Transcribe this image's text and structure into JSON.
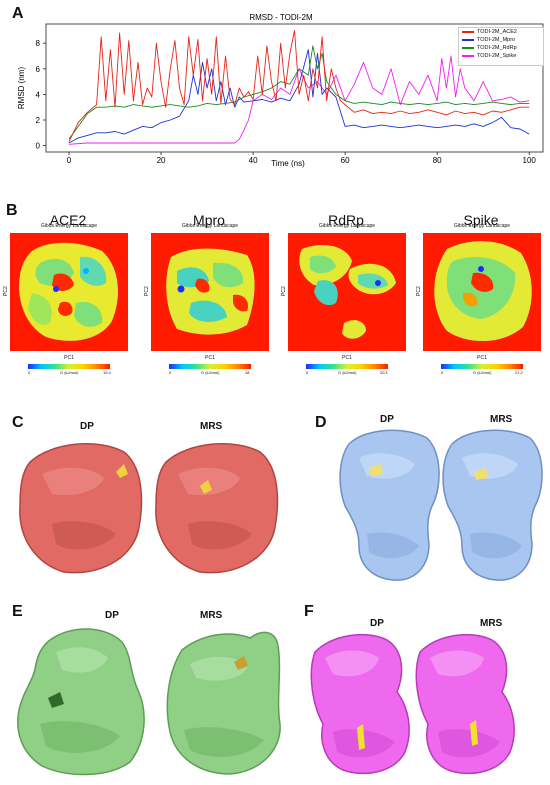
{
  "panels": {
    "A": "A",
    "B": "B",
    "C": "C",
    "D": "D",
    "E": "E",
    "F": "F"
  },
  "chart_data": {
    "type": "line",
    "title": "RMSD - TODI-2M",
    "xlabel": "Time (ns)",
    "ylabel": "RMSD (nm)",
    "xlim": [
      -5,
      103
    ],
    "ylim": [
      -0.5,
      9.5
    ],
    "xticks": [
      "0",
      "20",
      "40",
      "60",
      "80",
      "100"
    ],
    "yticks": [
      "0",
      "2",
      "4",
      "6",
      "8"
    ],
    "grid": false,
    "legend_position": "top-right",
    "series": [
      {
        "name": "TODI-2M_ACE2",
        "color": "#e8231b",
        "x": [
          0,
          2,
          4,
          6,
          7,
          8,
          9,
          10,
          11,
          12,
          13,
          14,
          15,
          16,
          17,
          18,
          19,
          20,
          21,
          22,
          23,
          24,
          25,
          26,
          27,
          28,
          29,
          30,
          31,
          32,
          33,
          34,
          35,
          36,
          37,
          38,
          39,
          40,
          41,
          42,
          43,
          44,
          45,
          46,
          47,
          48,
          49,
          50,
          51,
          52,
          53,
          54,
          55,
          56,
          57,
          58,
          59,
          60,
          62,
          64,
          66,
          68,
          70,
          72,
          74,
          76,
          78,
          80,
          82,
          84,
          86,
          88,
          90,
          92,
          94,
          96,
          98,
          100
        ],
        "y": [
          0.3,
          1.8,
          2.6,
          3.2,
          8.5,
          3.5,
          7.5,
          3.0,
          8.8,
          4.0,
          8.2,
          3.5,
          6.5,
          3.2,
          4.5,
          3.8,
          8.0,
          5.0,
          3.0,
          6.0,
          8.2,
          4.5,
          3.2,
          8.5,
          5.5,
          8.3,
          3.5,
          6.8,
          4.0,
          8.5,
          3.3,
          7.0,
          3.6,
          3.2,
          4.5,
          3.8,
          4.2,
          3.6,
          7.0,
          4.0,
          7.8,
          5.0,
          3.5,
          8.0,
          4.5,
          7.2,
          9.0,
          4.0,
          5.5,
          3.5,
          6.0,
          4.5,
          8.5,
          3.5,
          6.0,
          4.5,
          3.5,
          3.2,
          2.6,
          2.8,
          2.5,
          2.6,
          2.5,
          2.7,
          2.5,
          2.6,
          2.8,
          2.6,
          2.4,
          2.7,
          2.5,
          2.6,
          2.4,
          2.7,
          2.6,
          2.8,
          3.0,
          3.0
        ]
      },
      {
        "name": "TODI-2M_Mpro",
        "color": "#1f2fd6",
        "x": [
          0,
          2,
          4,
          6,
          8,
          10,
          12,
          14,
          16,
          18,
          20,
          22,
          24,
          26,
          27,
          28,
          29,
          30,
          31,
          32,
          33,
          34,
          35,
          36,
          37,
          38,
          40,
          42,
          44,
          46,
          48,
          50,
          52,
          53,
          54,
          55,
          56,
          58,
          60,
          62,
          64,
          66,
          68,
          70,
          72,
          74,
          76,
          78,
          80,
          82,
          84,
          86,
          88,
          90,
          92,
          94,
          96,
          98,
          100
        ],
        "y": [
          0.2,
          0.6,
          0.8,
          1.0,
          1.0,
          1.1,
          0.9,
          1.2,
          1.5,
          1.4,
          1.8,
          2.0,
          2.3,
          3.5,
          5.5,
          4.0,
          6.5,
          4.5,
          6.0,
          3.5,
          5.0,
          3.2,
          4.5,
          3.0,
          3.8,
          3.4,
          3.5,
          3.6,
          3.4,
          3.7,
          3.5,
          4.8,
          7.5,
          3.8,
          7.2,
          4.0,
          4.5,
          3.8,
          1.5,
          1.6,
          1.4,
          1.5,
          1.6,
          1.5,
          1.4,
          1.5,
          1.6,
          1.5,
          1.4,
          1.5,
          1.6,
          1.5,
          1.7,
          1.5,
          1.8,
          2.2,
          1.4,
          1.3,
          0.9
        ]
      },
      {
        "name": "TODI-2M_RdRp",
        "color": "#1b8a1b",
        "x": [
          0,
          2,
          4,
          6,
          8,
          10,
          12,
          14,
          16,
          18,
          20,
          22,
          24,
          26,
          28,
          30,
          32,
          34,
          36,
          38,
          40,
          42,
          44,
          46,
          48,
          50,
          52,
          53,
          54,
          55,
          56,
          58,
          60,
          62,
          64,
          66,
          68,
          70,
          72,
          74,
          76,
          78,
          80,
          82,
          84,
          86,
          88,
          90,
          92,
          94,
          96,
          98,
          100
        ],
        "y": [
          0.5,
          1.5,
          2.5,
          3.0,
          3.0,
          3.1,
          3.0,
          3.2,
          3.1,
          3.0,
          3.1,
          3.2,
          3.1,
          3.0,
          3.1,
          3.3,
          3.2,
          3.3,
          3.4,
          3.8,
          4.0,
          4.2,
          4.5,
          5.0,
          4.8,
          6.0,
          5.5,
          7.8,
          6.0,
          7.2,
          5.0,
          4.0,
          3.5,
          3.3,
          3.4,
          3.3,
          3.2,
          3.4,
          3.3,
          3.2,
          3.3,
          3.2,
          3.3,
          3.4,
          3.2,
          3.3,
          3.2,
          3.3,
          3.4,
          3.3,
          3.2,
          3.3,
          3.3
        ]
      },
      {
        "name": "TODI-2M_Spike",
        "color": "#f21ef2",
        "x": [
          0,
          4,
          8,
          12,
          16,
          20,
          24,
          28,
          32,
          36,
          37,
          38,
          39,
          40,
          42,
          44,
          46,
          48,
          50,
          52,
          54,
          56,
          58,
          60,
          62,
          64,
          66,
          68,
          70,
          72,
          74,
          76,
          78,
          80,
          81,
          82,
          83,
          84,
          85,
          86,
          88,
          90,
          92,
          94,
          96,
          98,
          100
        ],
        "y": [
          0.1,
          0.2,
          0.2,
          0.2,
          0.2,
          0.2,
          0.2,
          0.2,
          0.2,
          0.2,
          0.5,
          1.2,
          2.0,
          3.5,
          4.0,
          3.6,
          4.5,
          4.0,
          6.0,
          4.5,
          5.0,
          4.0,
          5.5,
          3.5,
          4.8,
          6.5,
          4.5,
          4.0,
          6.0,
          3.2,
          5.0,
          4.0,
          5.5,
          3.5,
          6.8,
          4.5,
          7.0,
          3.8,
          6.0,
          4.5,
          3.5,
          5.0,
          3.5,
          3.6,
          3.8,
          3.4,
          3.5
        ]
      }
    ]
  },
  "landscape": {
    "subtitle": "Gibbs Energy Landscape",
    "xaxis": "PC1",
    "yaxis": "PC2",
    "cbar_label": "G (kJ/mol)",
    "cbar_min": "0",
    "panels": [
      {
        "title": "ACE2",
        "max": "19.4"
      },
      {
        "title": "Mpro",
        "max": "18"
      },
      {
        "title": "RdRp",
        "max": "20.1"
      },
      {
        "title": "Spike",
        "max": "21.2"
      }
    ]
  },
  "structures": [
    {
      "panel": "C",
      "left": "DP",
      "right": "MRS",
      "color": "#e26a65",
      "ligand": "#f0d040"
    },
    {
      "panel": "D",
      "left": "DP",
      "right": "MRS",
      "color": "#a9c6f0",
      "ligand": "#f0e070"
    },
    {
      "panel": "E",
      "left": "DP",
      "right": "MRS",
      "color": "#8fcf86",
      "ligand": "#c8a030"
    },
    {
      "panel": "F",
      "left": "DP",
      "right": "MRS",
      "color": "#ef69ef",
      "ligand": "#f0e030"
    }
  ]
}
